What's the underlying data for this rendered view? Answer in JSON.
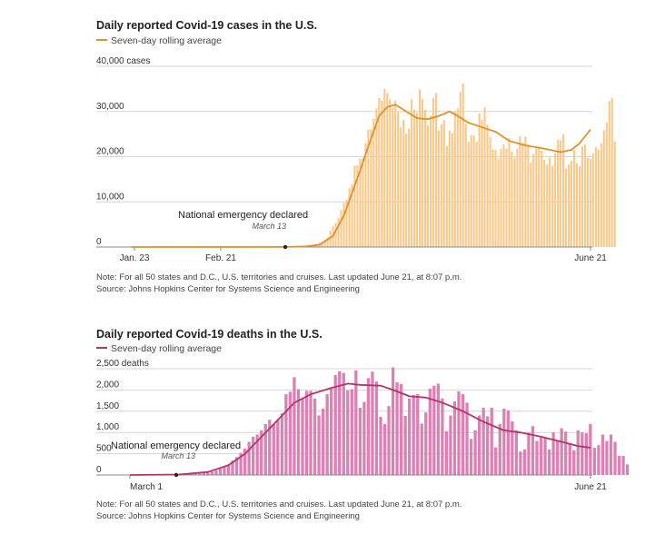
{
  "chart_data": [
    {
      "type": "bar",
      "title": "Daily reported Covid-19 cases in the U.S.",
      "legend": {
        "label": "Seven-day rolling average",
        "placement": "top-left"
      },
      "y_ticks": [
        "40,000 cases",
        "30,000",
        "20,000",
        "10,000",
        "0"
      ],
      "y_tick_values": [
        40000,
        30000,
        20000,
        10000,
        0
      ],
      "x_ticks": [
        "Jan. 23",
        "Feb. 21",
        "June 21"
      ],
      "x_tick_dates": [
        "2020-01-23",
        "2020-02-21",
        "2020-06-21"
      ],
      "ylim": [
        0,
        40000
      ],
      "xlim": [
        "2020-01-22",
        "2020-06-21"
      ],
      "grid": true,
      "annotation": {
        "label": "National emergency declared",
        "sublabel": "March 13",
        "date": "2020-03-13"
      },
      "colors": {
        "bars": "#f9c98a",
        "line": "#e0912a"
      },
      "series": [
        {
          "kind": "bars",
          "start": "2020-03-01",
          "end": "2020-06-21",
          "values": [
            20,
            30,
            40,
            60,
            80,
            120,
            160,
            220,
            280,
            400,
            550,
            750,
            1000,
            1200,
            1600,
            2100,
            3600,
            4600,
            5400,
            6500,
            8200,
            9800,
            10500,
            13000,
            13900,
            18000,
            18100,
            19600,
            19700,
            23000,
            26000,
            26100,
            28400,
            30700,
            33000,
            32500,
            35000,
            34100,
            32700,
            30900,
            32500,
            30000,
            26500,
            28200,
            25100,
            26200,
            32700,
            30400,
            29700,
            34900,
            32800,
            30400,
            26900,
            29100,
            33000,
            34100,
            25800,
            27200,
            28100,
            22300,
            25800,
            25200,
            30000,
            30700,
            34400,
            36200,
            27300,
            23300,
            24800,
            24700,
            23300,
            29600,
            28200,
            30900,
            27100,
            24400,
            21600,
            21500,
            19600,
            21800,
            22700,
            21800,
            24100,
            21100,
            19800,
            21800,
            24500,
            23000,
            24400,
            22700,
            18700,
            20600,
            22200,
            22100,
            21300,
            19300,
            18200,
            19800,
            18000,
            20700,
            23800,
            23600,
            25000,
            17400,
            18300,
            19100,
            21500,
            18500,
            17900,
            22300,
            22700,
            19800,
            19500,
            20700,
            22100,
            21600,
            23000,
            25800,
            27600,
            32300,
            33000,
            23400
          ]
        },
        {
          "kind": "line",
          "name": "Seven-day rolling average",
          "start": "2020-01-22",
          "end": "2020-06-21",
          "anchors": [
            [
              "2020-01-22",
              0
            ],
            [
              "2020-03-01",
              30
            ],
            [
              "2020-03-08",
              150
            ],
            [
              "2020-03-13",
              500
            ],
            [
              "2020-03-18",
              2500
            ],
            [
              "2020-03-22",
              7000
            ],
            [
              "2020-03-25",
              12000
            ],
            [
              "2020-03-28",
              17000
            ],
            [
              "2020-04-01",
              24000
            ],
            [
              "2020-04-04",
              29000
            ],
            [
              "2020-04-07",
              31000
            ],
            [
              "2020-04-10",
              31500
            ],
            [
              "2020-04-14",
              30000
            ],
            [
              "2020-04-18",
              28500
            ],
            [
              "2020-04-22",
              28300
            ],
            [
              "2020-04-26",
              29000
            ],
            [
              "2020-04-30",
              30000
            ],
            [
              "2020-05-03",
              29000
            ],
            [
              "2020-05-07",
              27500
            ],
            [
              "2020-05-12",
              26500
            ],
            [
              "2020-05-17",
              25500
            ],
            [
              "2020-05-22",
              23500
            ],
            [
              "2020-05-28",
              22500
            ],
            [
              "2020-06-02",
              22000
            ],
            [
              "2020-06-06",
              21500
            ],
            [
              "2020-06-10",
              21000
            ],
            [
              "2020-06-14",
              21500
            ],
            [
              "2020-06-17",
              23000
            ],
            [
              "2020-06-21",
              26000
            ]
          ]
        }
      ],
      "note": "Note: For all 50 states and D.C., U.S. territories and cruises. Last updated June 21, at 8:07 p.m.",
      "source": "Source: Johns Hopkins Center for Systems Science and Engineering"
    },
    {
      "type": "bar",
      "title": "Daily reported Covid-19 deaths in the U.S.",
      "legend": {
        "label": "Seven-day rolling average",
        "placement": "top-left"
      },
      "y_ticks": [
        "2,500 deaths",
        "2,000",
        "1,500",
        "1,000",
        "500",
        "0"
      ],
      "y_tick_values": [
        2500,
        2000,
        1500,
        1000,
        500,
        0
      ],
      "x_ticks": [
        "March 1",
        "June 21"
      ],
      "x_tick_dates": [
        "2020-03-01",
        "2020-06-21"
      ],
      "ylim": [
        0,
        2500
      ],
      "xlim": [
        "2020-03-01",
        "2020-06-21"
      ],
      "grid": true,
      "annotation": {
        "label": "National emergency declared",
        "sublabel": "March 13",
        "date": "2020-03-13"
      },
      "colors": {
        "bars": "#d982b3",
        "line": "#b5336f"
      },
      "series": [
        {
          "kind": "bars",
          "start": "2020-03-01",
          "end": "2020-06-21",
          "values": [
            1,
            1,
            2,
            2,
            2,
            3,
            4,
            5,
            5,
            7,
            8,
            10,
            12,
            15,
            18,
            22,
            28,
            35,
            50,
            60,
            80,
            110,
            150,
            200,
            250,
            340,
            420,
            520,
            620,
            780,
            900,
            950,
            1050,
            1200,
            1300,
            1200,
            1300,
            1450,
            1900,
            1960,
            2300,
            2020,
            1800,
            1980,
            1980,
            1800,
            1400,
            1560,
            1900,
            2050,
            2350,
            2440,
            2400,
            1990,
            2020,
            2460,
            1580,
            1720,
            2280,
            2430,
            2200,
            1370,
            1200,
            1620,
            2530,
            2180,
            2140,
            1390,
            1800,
            1880,
            1900,
            1210,
            1470,
            2030,
            2100,
            2150,
            1800,
            1030,
            1400,
            1730,
            1970,
            1900,
            1700,
            850,
            1050,
            1400,
            1580,
            1380,
            1580,
            650,
            1200,
            1560,
            1520,
            1260,
            1050,
            550,
            600,
            1000,
            1150,
            800,
            900,
            880,
            600,
            1000,
            800,
            1100,
            1020,
            750,
            580,
            1050,
            1000,
            980,
            1200,
            640,
            700,
            950,
            800,
            950,
            780,
            450,
            450,
            250
          ]
        },
        {
          "kind": "line",
          "name": "Seven-day rolling average",
          "start": "2020-03-01",
          "end": "2020-06-21",
          "anchors": [
            [
              "2020-03-01",
              0
            ],
            [
              "2020-03-13",
              10
            ],
            [
              "2020-03-20",
              70
            ],
            [
              "2020-03-25",
              230
            ],
            [
              "2020-03-29",
              500
            ],
            [
              "2020-04-02",
              900
            ],
            [
              "2020-04-06",
              1300
            ],
            [
              "2020-04-10",
              1700
            ],
            [
              "2020-04-14",
              1900
            ],
            [
              "2020-04-19",
              2050
            ],
            [
              "2020-04-23",
              2150
            ],
            [
              "2020-04-26",
              2120
            ],
            [
              "2020-05-01",
              2100
            ],
            [
              "2020-05-04",
              2000
            ],
            [
              "2020-05-08",
              1850
            ],
            [
              "2020-05-12",
              1820
            ],
            [
              "2020-05-16",
              1700
            ],
            [
              "2020-05-21",
              1500
            ],
            [
              "2020-05-26",
              1250
            ],
            [
              "2020-05-31",
              1050
            ],
            [
              "2020-06-04",
              1000
            ],
            [
              "2020-06-09",
              900
            ],
            [
              "2020-06-14",
              780
            ],
            [
              "2020-06-18",
              680
            ],
            [
              "2020-06-21",
              640
            ]
          ]
        }
      ],
      "note": "Note: For all 50 states and D.C., U.S. territories and cruises. Last updated June 21, at 8:07 p.m.",
      "source": "Source: Johns Hopkins Center for Systems Science and Engineering"
    }
  ]
}
